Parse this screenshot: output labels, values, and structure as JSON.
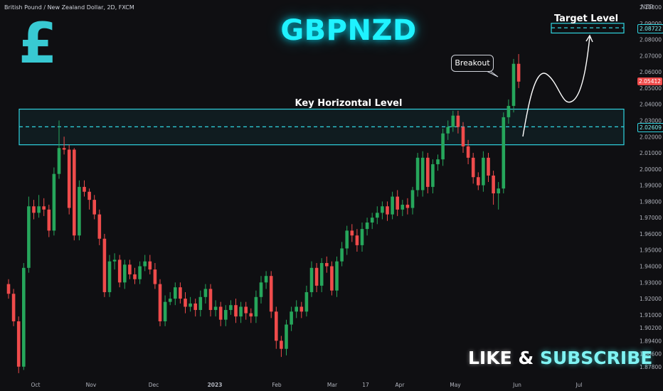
{
  "header": {
    "symbol_info": "British Pound / New Zealand Dollar, 2D, FXCM",
    "currency": "NZD"
  },
  "overlay": {
    "title": "GBPNZD",
    "pound_symbol": "£",
    "key_level_label": "Key Horizontal Level",
    "target_label": "Target Level",
    "breakout_label": "Breakout",
    "subscribe_like": "LIKE",
    "subscribe_amp": "&",
    "subscribe_sub": "SUBSCRIBE"
  },
  "price_tags": {
    "target": "2.08722",
    "current": "2.05412",
    "key_level": "2.02609"
  },
  "colors": {
    "background": "#0f0f12",
    "bull": "#26a65b",
    "bear": "#ef4b4b",
    "zone_border": "#30d4e0",
    "zone_fill": "rgba(48, 212, 224, 0.07)",
    "accent": "#1ff2ff"
  },
  "chart_data": {
    "type": "candlestick",
    "title": "GBPNZD",
    "ylim": [
      1.87,
      2.1
    ],
    "y_ticks": [
      "2.10000",
      "2.09000",
      "2.08000",
      "2.07000",
      "2.06000",
      "2.05000",
      "2.04000",
      "2.03000",
      "2.02000",
      "2.01000",
      "2.00000",
      "1.99000",
      "1.98000",
      "1.97000",
      "1.96000",
      "1.95000",
      "1.94000",
      "1.93000",
      "1.92000",
      "1.91000",
      "1.90200",
      "1.89400",
      "1.88600",
      "1.87800"
    ],
    "x_labels": [
      "Oct",
      "Nov",
      "Dec",
      "2023",
      "Feb",
      "Mar",
      "17",
      "Apr",
      "May",
      "Jun",
      "Jul"
    ],
    "zones": [
      {
        "label": "Key Horizontal Level",
        "low": 2.015,
        "high": 2.037,
        "level": 2.0261
      },
      {
        "label": "Target Level",
        "low": 2.084,
        "high": 2.09,
        "level": 2.0872
      }
    ],
    "candles": [
      [
        1.929,
        1.923,
        1.932,
        1.92
      ],
      [
        1.923,
        1.906,
        1.926,
        1.903
      ],
      [
        1.906,
        1.878,
        1.909,
        1.874
      ],
      [
        1.878,
        1.939,
        1.942,
        1.876
      ],
      [
        1.939,
        1.977,
        1.983,
        1.936
      ],
      [
        1.977,
        1.973,
        1.981,
        1.969
      ],
      [
        1.973,
        1.977,
        1.984,
        1.97
      ],
      [
        1.977,
        1.975,
        1.982,
        1.971
      ],
      [
        1.975,
        1.962,
        1.978,
        1.958
      ],
      [
        1.962,
        1.997,
        2.001,
        1.959
      ],
      [
        1.997,
        2.013,
        2.03,
        1.994
      ],
      [
        2.013,
        2.012,
        2.02,
        2.009
      ],
      [
        2.012,
        1.976,
        2.015,
        1.972
      ],
      [
        2.012,
        1.959,
        2.013,
        1.956
      ],
      [
        1.959,
        1.989,
        1.993,
        1.956
      ],
      [
        1.989,
        1.986,
        1.993,
        1.983
      ],
      [
        1.986,
        1.981,
        1.988,
        1.975
      ],
      [
        1.981,
        1.972,
        1.984,
        1.969
      ],
      [
        1.972,
        1.957,
        1.975,
        1.953
      ],
      [
        1.957,
        1.924,
        1.96,
        1.921
      ],
      [
        1.924,
        1.943,
        1.947,
        1.921
      ],
      [
        1.943,
        1.944,
        1.948,
        1.938
      ],
      [
        1.944,
        1.93,
        1.947,
        1.927
      ],
      [
        1.93,
        1.941,
        1.944,
        1.926
      ],
      [
        1.941,
        1.935,
        1.944,
        1.932
      ],
      [
        1.935,
        1.932,
        1.939,
        1.929
      ],
      [
        1.932,
        1.94,
        1.943,
        1.929
      ],
      [
        1.94,
        1.943,
        1.947,
        1.937
      ],
      [
        1.943,
        1.938,
        1.947,
        1.935
      ],
      [
        1.938,
        1.929,
        1.942,
        1.926
      ],
      [
        1.929,
        1.906,
        1.932,
        1.903
      ],
      [
        1.906,
        1.918,
        1.922,
        1.903
      ],
      [
        1.918,
        1.92,
        1.924,
        1.916
      ],
      [
        1.92,
        1.927,
        1.93,
        1.916
      ],
      [
        1.927,
        1.92,
        1.93,
        1.917
      ],
      [
        1.92,
        1.915,
        1.924,
        1.911
      ],
      [
        1.915,
        1.917,
        1.921,
        1.912
      ],
      [
        1.917,
        1.913,
        1.92,
        1.909
      ],
      [
        1.913,
        1.921,
        1.925,
        1.909
      ],
      [
        1.921,
        1.926,
        1.929,
        1.917
      ],
      [
        1.926,
        1.913,
        1.929,
        1.909
      ],
      [
        1.913,
        1.915,
        1.919,
        1.909
      ],
      [
        1.915,
        1.907,
        1.918,
        1.903
      ],
      [
        1.907,
        1.913,
        1.916,
        1.903
      ],
      [
        1.913,
        1.916,
        1.919,
        1.91
      ],
      [
        1.916,
        1.909,
        1.92,
        1.905
      ],
      [
        1.909,
        1.915,
        1.918,
        1.905
      ],
      [
        1.915,
        1.911,
        1.918,
        1.907
      ],
      [
        1.911,
        1.909,
        1.914,
        1.905
      ],
      [
        1.909,
        1.921,
        1.925,
        1.905
      ],
      [
        1.921,
        1.93,
        1.934,
        1.917
      ],
      [
        1.93,
        1.934,
        1.937,
        1.926
      ],
      [
        1.934,
        1.912,
        1.937,
        1.908
      ],
      [
        1.912,
        1.894,
        1.915,
        1.889
      ],
      [
        1.894,
        1.889,
        1.897,
        1.884
      ],
      [
        1.889,
        1.904,
        1.907,
        1.885
      ],
      [
        1.904,
        1.912,
        1.915,
        1.9
      ],
      [
        1.912,
        1.915,
        1.919,
        1.908
      ],
      [
        1.915,
        1.912,
        1.918,
        1.908
      ],
      [
        1.912,
        1.924,
        1.928,
        1.909
      ],
      [
        1.924,
        1.939,
        1.943,
        1.921
      ],
      [
        1.939,
        1.928,
        1.942,
        1.924
      ],
      [
        1.928,
        1.942,
        1.945,
        1.924
      ],
      [
        1.942,
        1.94,
        1.946,
        1.936
      ],
      [
        1.94,
        1.925,
        1.943,
        1.922
      ],
      [
        1.925,
        1.943,
        1.946,
        1.921
      ],
      [
        1.943,
        1.951,
        1.955,
        1.94
      ],
      [
        1.951,
        1.962,
        1.965,
        1.947
      ],
      [
        1.962,
        1.959,
        1.966,
        1.955
      ],
      [
        1.959,
        1.953,
        1.963,
        1.949
      ],
      [
        1.953,
        1.963,
        1.967,
        1.949
      ],
      [
        1.963,
        1.967,
        1.97,
        1.959
      ],
      [
        1.967,
        1.97,
        1.973,
        1.963
      ],
      [
        1.97,
        1.973,
        1.977,
        1.966
      ],
      [
        1.973,
        1.977,
        1.98,
        1.969
      ],
      [
        1.977,
        1.972,
        1.98,
        1.968
      ],
      [
        1.972,
        1.983,
        1.986,
        1.969
      ],
      [
        1.983,
        1.975,
        1.987,
        1.971
      ],
      [
        1.975,
        1.978,
        1.981,
        1.971
      ],
      [
        1.978,
        1.976,
        1.982,
        1.972
      ],
      [
        1.976,
        1.987,
        1.989,
        1.972
      ],
      [
        1.987,
        2.007,
        2.01,
        1.983
      ],
      [
        1.987,
        2.007,
        2.011,
        1.983
      ],
      [
        2.007,
        1.989,
        2.01,
        1.985
      ],
      [
        1.989,
        2.003,
        2.006,
        1.985
      ],
      [
        2.003,
        2.006,
        2.009,
        1.999
      ],
      [
        2.006,
        2.022,
        2.025,
        2.002
      ],
      [
        2.022,
        2.026,
        2.03,
        2.018
      ],
      [
        2.026,
        2.033,
        2.036,
        2.023
      ],
      [
        2.033,
        2.026,
        2.036,
        2.022
      ],
      [
        2.026,
        2.014,
        2.029,
        2.01
      ],
      [
        2.014,
        2.007,
        2.018,
        2.003
      ],
      [
        2.007,
        1.995,
        2.01,
        1.991
      ],
      [
        1.995,
        1.99,
        1.998,
        1.987
      ],
      [
        1.99,
        2.007,
        2.011,
        1.986
      ],
      [
        2.007,
        1.996,
        2.01,
        1.992
      ],
      [
        1.996,
        1.985,
        1.999,
        1.978
      ],
      [
        1.985,
        1.988,
        1.992,
        1.975
      ],
      [
        1.988,
        2.032,
        2.035,
        1.985
      ],
      [
        2.032,
        2.039,
        2.043,
        2.028
      ],
      [
        2.039,
        2.065,
        2.068,
        2.035
      ],
      [
        2.065,
        2.054,
        2.071,
        2.05
      ]
    ]
  }
}
